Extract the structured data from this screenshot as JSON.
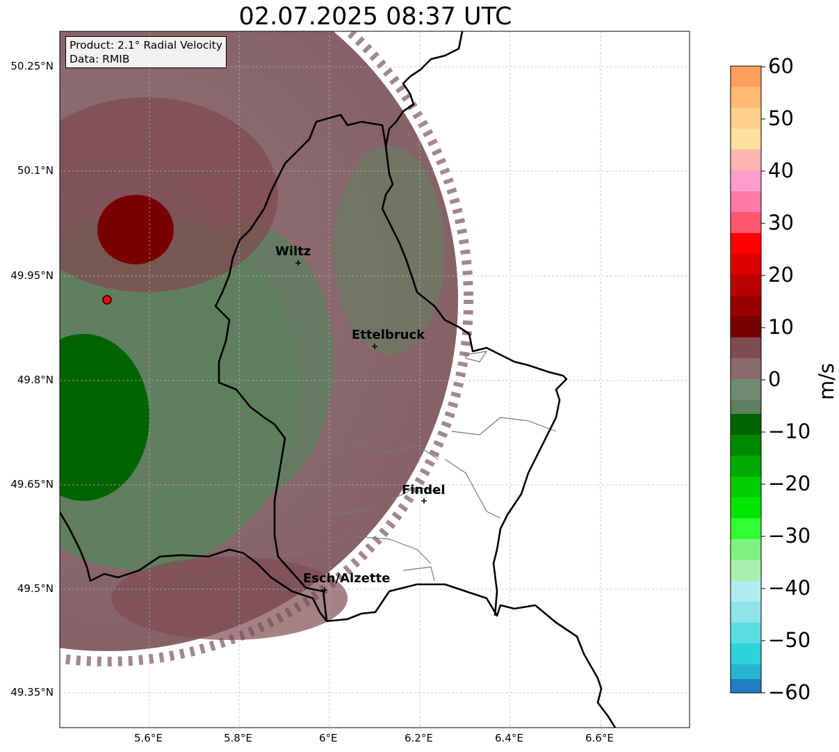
{
  "title": "02.07.2025 08:37 UTC",
  "info": {
    "product": "Product: 2.1° Radial Velocity",
    "source": "Data: RMIB"
  },
  "axes": {
    "lat_ticks": [
      "50.25°N",
      "50.1°N",
      "49.95°N",
      "49.8°N",
      "49.65°N",
      "49.5°N",
      "49.35°N"
    ],
    "lon_ticks": [
      "5.6°E",
      "5.8°E",
      "6°E",
      "6.2°E",
      "6.4°E",
      "6.6°E"
    ]
  },
  "colorbar": {
    "unit": "m/s",
    "ticks": [
      "60",
      "50",
      "40",
      "30",
      "20",
      "10",
      "0",
      "−10",
      "−20",
      "−30",
      "−40",
      "−50",
      "−60"
    ],
    "colors": {
      "strong_away": "#ff9e5a",
      "away": "#cc0000",
      "near_zero_positive": "#8a6a6e",
      "near_zero_negative": "#5f7f5f",
      "toward": "#006400",
      "strong_toward": "#1f7fc0"
    }
  },
  "cities": [
    {
      "name": "Wiltz",
      "lon": 5.93,
      "lat": 49.97
    },
    {
      "name": "Ettelbruck",
      "lon": 6.1,
      "lat": 49.85
    },
    {
      "name": "Findel",
      "lon": 6.21,
      "lat": 49.63
    },
    {
      "name": "Esch/Alzette",
      "lon": 5.99,
      "lat": 49.5
    }
  ],
  "radar_site": {
    "lon": 5.505,
    "lat": 49.915
  }
}
